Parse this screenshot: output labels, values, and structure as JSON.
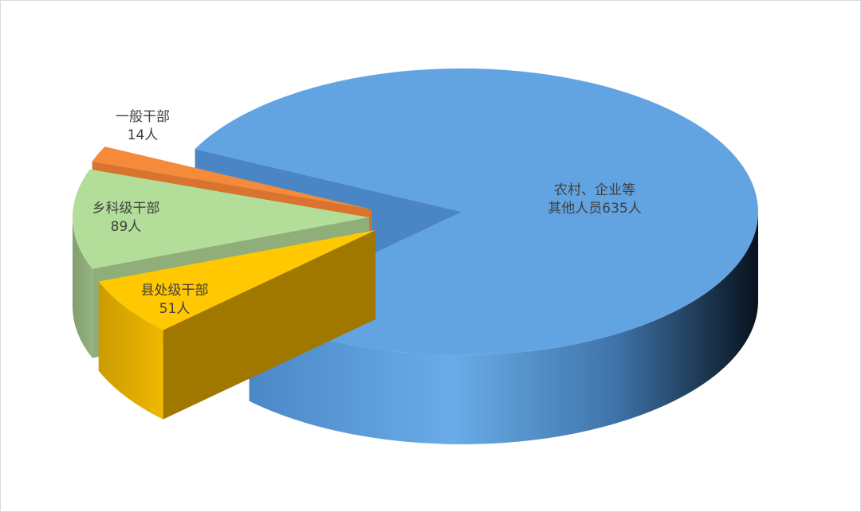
{
  "chart_data": {
    "type": "pie",
    "style": "3d-exploded",
    "unit": "人",
    "slices": [
      {
        "name": "农村、企业等其他人员",
        "label_lines": [
          "农村、企业等",
          "其他人员635人"
        ],
        "value": 635,
        "color": "#62a3e2",
        "exploded": false
      },
      {
        "name": "一般干部",
        "label_lines": [
          "一般干部",
          "14人"
        ],
        "value": 14,
        "color": "#f58a3a",
        "exploded": true
      },
      {
        "name": "乡科级干部",
        "label_lines": [
          "乡科级干部",
          "89人"
        ],
        "value": 89,
        "color": "#b3de9a",
        "exploded": true
      },
      {
        "name": "县处级干部",
        "label_lines": [
          "县处级干部",
          "51人"
        ],
        "value": 51,
        "color": "#ffc800",
        "exploded": true
      }
    ],
    "legend": "none"
  }
}
